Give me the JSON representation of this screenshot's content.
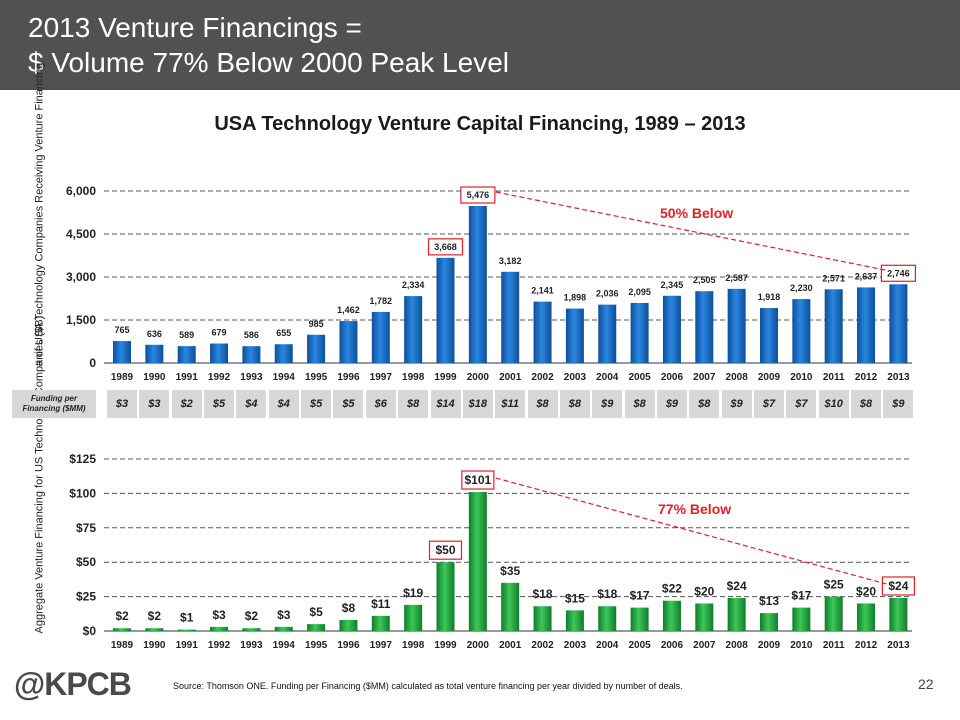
{
  "header": {
    "line1": "2013 Venture Financings =",
    "line2": "$ Volume 77% Below 2000 Peak Level"
  },
  "chart_title": "USA Technology Venture Capital Financing, 1989 – 2013",
  "funding": {
    "label": "Funding per Financing ($MM)",
    "values": [
      "$3",
      "$3",
      "$2",
      "$5",
      "$4",
      "$4",
      "$5",
      "$5",
      "$6",
      "$8",
      "$14",
      "$18",
      "$11",
      "$8",
      "$8",
      "$9",
      "$8",
      "$9",
      "$8",
      "$9",
      "$7",
      "$7",
      "$10",
      "$8",
      "$9"
    ]
  },
  "colors": {
    "top_bars": "#1565b8",
    "bottom_bars": "#1aa33a",
    "highlight": "#e0202a",
    "header_bg": "#515151"
  },
  "chart_data": [
    {
      "type": "bar",
      "ylabel": "# of USA Technology Companies Receiving Venture Financing",
      "categories": [
        "1989",
        "1990",
        "1991",
        "1992",
        "1993",
        "1994",
        "1995",
        "1996",
        "1997",
        "1998",
        "1999",
        "2000",
        "2001",
        "2002",
        "2003",
        "2004",
        "2005",
        "2006",
        "2007",
        "2008",
        "2009",
        "2010",
        "2011",
        "2012",
        "2013"
      ],
      "values": [
        765,
        636,
        589,
        679,
        586,
        655,
        985,
        1462,
        1782,
        2334,
        3668,
        5476,
        3182,
        2141,
        1898,
        2036,
        2095,
        2345,
        2505,
        2587,
        1918,
        2230,
        2571,
        2637,
        2746
      ],
      "labels": [
        "765",
        "636",
        "589",
        "679",
        "586",
        "655",
        "985",
        "1,462",
        "1,782",
        "2,334",
        "3,668",
        "5,476",
        "3,182",
        "2,141",
        "1,898",
        "2,036",
        "2,095",
        "2,345",
        "2,505",
        "2,587",
        "1,918",
        "2,230",
        "2,571",
        "2,637",
        "2,746"
      ],
      "ylim": [
        0,
        6000
      ],
      "yticks": [
        "0",
        "1,500",
        "3,000",
        "4,500",
        "6,000"
      ],
      "ytick_values": [
        0,
        1500,
        3000,
        4500,
        6000
      ],
      "highlighted": [
        "1999",
        "2000",
        "2013"
      ],
      "annotation": "50% Below",
      "grid": true
    },
    {
      "type": "bar",
      "ylabel": "Aggregate Venture Financing for US Technology Companies ($B)",
      "categories": [
        "1989",
        "1990",
        "1991",
        "1992",
        "1993",
        "1994",
        "1995",
        "1996",
        "1997",
        "1998",
        "1999",
        "2000",
        "2001",
        "2002",
        "2003",
        "2004",
        "2005",
        "2006",
        "2007",
        "2008",
        "2009",
        "2010",
        "2011",
        "2012",
        "2013"
      ],
      "values": [
        2,
        2,
        1,
        3,
        2,
        3,
        5,
        8,
        11,
        19,
        50,
        101,
        35,
        18,
        15,
        18,
        17,
        22,
        20,
        24,
        13,
        17,
        25,
        20,
        24
      ],
      "labels": [
        "$2",
        "$2",
        "$1",
        "$3",
        "$2",
        "$3",
        "$5",
        "$8",
        "$11",
        "$19",
        "$50",
        "$101",
        "$35",
        "$18",
        "$15",
        "$18",
        "$17",
        "$22",
        "$20",
        "$24",
        "$13",
        "$17",
        "$25",
        "$20",
        "$24"
      ],
      "ylim": [
        0,
        125
      ],
      "yticks": [
        "$0",
        "$25",
        "$50",
        "$75",
        "$100",
        "$125"
      ],
      "ytick_values": [
        0,
        25,
        50,
        75,
        100,
        125
      ],
      "highlighted": [
        "1999",
        "2000",
        "2013"
      ],
      "annotation": "77% Below",
      "grid": true
    }
  ],
  "footer": {
    "logo": "@KPCB",
    "source": "Source: Thomson ONE. Funding per Financing ($MM) calculated as total venture financing per year divided by number of deals.",
    "page": "22"
  }
}
